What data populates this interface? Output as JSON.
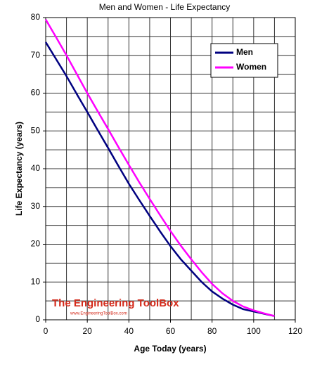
{
  "chart_data": {
    "type": "line",
    "title": "Men and Women - Life Expectancy",
    "x_label": "Age Today (years)",
    "y_label": "Life Expectancy (years)",
    "x": [
      0,
      5,
      10,
      15,
      20,
      25,
      30,
      35,
      40,
      45,
      50,
      55,
      60,
      65,
      70,
      75,
      80,
      85,
      90,
      95,
      100,
      105,
      110
    ],
    "series": [
      {
        "name": "Men",
        "color": "#000080",
        "values": [
          73.5,
          69,
          64.5,
          59.7,
          55,
          50.2,
          45.5,
          40.7,
          36,
          31.7,
          27.5,
          23.4,
          19.5,
          16,
          13,
          10,
          7.5,
          5.6,
          4,
          2.8,
          2.2,
          1.6,
          1
        ]
      },
      {
        "name": "Women",
        "color": "#ff00ff",
        "values": [
          79.5,
          74.8,
          70,
          65,
          60,
          55.2,
          50.5,
          45.7,
          41,
          36.4,
          32,
          27.7,
          23.5,
          19.6,
          16,
          12.6,
          9.5,
          7,
          5,
          3.5,
          2.5,
          1.7,
          1
        ]
      }
    ],
    "xlim": [
      0,
      120
    ],
    "xticks": [
      0,
      20,
      40,
      60,
      80,
      100,
      120
    ],
    "ylim": [
      0,
      80
    ],
    "yticks": [
      0,
      10,
      20,
      30,
      40,
      50,
      60,
      70,
      80
    ],
    "xgrid": [
      0,
      10,
      20,
      30,
      40,
      50,
      60,
      70,
      80,
      90,
      100,
      110,
      120
    ],
    "ygrid": [
      0,
      5,
      10,
      15,
      20,
      25,
      30,
      35,
      40,
      45,
      50,
      55,
      60,
      65,
      70,
      75,
      80
    ],
    "grid": true,
    "legend": "top-right",
    "watermark": {
      "title": "The Engineering ToolBox",
      "url": "www.EngineeringToolBox.com"
    }
  }
}
